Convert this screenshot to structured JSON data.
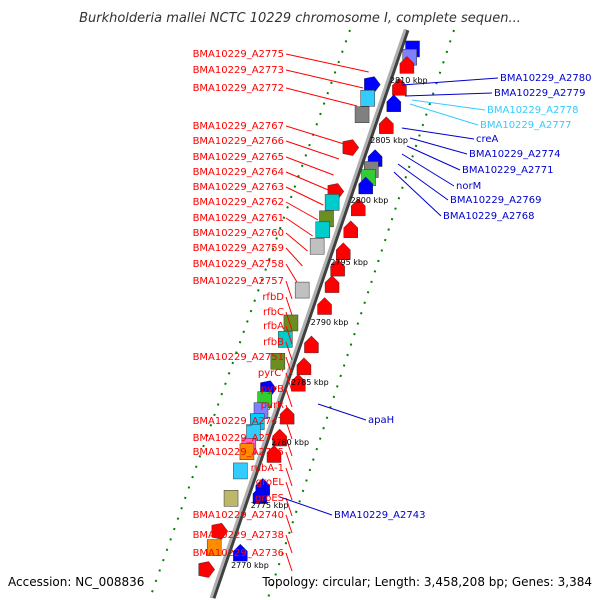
{
  "title": "Burkholderia mallei NCTC 10229 chromosome I, complete sequen...",
  "footer": {
    "accession": "Accession: NC_008836",
    "topology": "Topology: circular; Length: 3,458,208 bp; Genes: 3,384"
  },
  "colors": {
    "label_red": "#ff0000",
    "label_blue": "#0000cc",
    "label_cyan": "#33ccff",
    "backbone": "#808080",
    "dotted_ring": "#008000",
    "gene_red": "#ff0000",
    "gene_blue": "#0000ff",
    "gene_olive": "#6b8e23",
    "gene_cyan": "#00cccc",
    "gene_gray": "#c0c0c0",
    "gene_khaki": "#bdb76b",
    "gene_lavender": "#8080ff",
    "gene_orange": "#ff8c00",
    "gene_green": "#33cc33",
    "gene_pink": "#ff66cc"
  },
  "scale_ticks": [
    "2810 kbp",
    "2805 kbp",
    "2800 kbp",
    "2795 kbp",
    "2790 kbp",
    "2785 kbp",
    "2780 kbp",
    "2775 kbp",
    "2770 kbp"
  ],
  "left_labels": [
    "BMA10229_A2775",
    "BMA10229_A2773",
    "BMA10229_A2772",
    "BMA10229_A2767",
    "BMA10229_A2766",
    "BMA10229_A2765",
    "BMA10229_A2764",
    "BMA10229_A2763",
    "BMA10229_A2762",
    "BMA10229_A2761",
    "BMA10229_A2760",
    "BMA10229_A2759",
    "BMA10229_A2758",
    "BMA10229_A2757",
    "rfbD",
    "rfbC",
    "rfbA",
    "rfbB",
    "BMA10229_A2751",
    "pyrC'",
    "pyrB",
    "pyrR",
    "BMA10229_A2747",
    "BMA10229_A2746",
    "BMA10229_A2745",
    "rubA-1",
    "groEL",
    "groES",
    "BMA10229_A2740",
    "BMA10229_A2738",
    "BMA10229_A2736"
  ],
  "right_labels": [
    {
      "text": "BMA10229_A2780",
      "tone": "blue"
    },
    {
      "text": "BMA10229_A2779",
      "tone": "blue"
    },
    {
      "text": "BMA10229_A2778",
      "tone": "cyan"
    },
    {
      "text": "BMA10229_A2777",
      "tone": "cyan"
    },
    {
      "text": "creA",
      "tone": "blue"
    },
    {
      "text": "BMA10229_A2774",
      "tone": "blue"
    },
    {
      "text": "BMA10229_A2771",
      "tone": "blue"
    },
    {
      "text": "norM",
      "tone": "blue"
    },
    {
      "text": "BMA10229_A2769",
      "tone": "blue"
    },
    {
      "text": "BMA10229_A2768",
      "tone": "blue"
    },
    {
      "text": "apaH",
      "tone": "blue"
    },
    {
      "text": "BMA10229_A2743",
      "tone": "blue"
    }
  ],
  "genes": [
    {
      "pos": 0.02,
      "track": "right",
      "shape": "rect",
      "color": "#0000ff"
    },
    {
      "pos": 0.035,
      "track": "right",
      "shape": "rect",
      "color": "#8080ff"
    },
    {
      "pos": 0.05,
      "track": "right",
      "shape": "arrow",
      "color": "#ff0000"
    },
    {
      "pos": 0.09,
      "track": "right",
      "shape": "arrow",
      "color": "#ff0000"
    },
    {
      "pos": 0.085,
      "track": "left",
      "shape": "arrow",
      "color": "#0000ff"
    },
    {
      "pos": 0.11,
      "track": "left",
      "shape": "rect",
      "color": "#33ccff"
    },
    {
      "pos": 0.14,
      "track": "left",
      "shape": "rect",
      "color": "#808080"
    },
    {
      "pos": 0.12,
      "track": "right",
      "shape": "arrow",
      "color": "#0000ff"
    },
    {
      "pos": 0.16,
      "track": "right",
      "shape": "arrow",
      "color": "#ff0000"
    },
    {
      "pos": 0.2,
      "track": "left",
      "shape": "arrow",
      "color": "#ff0000"
    },
    {
      "pos": 0.22,
      "track": "right",
      "shape": "arrow",
      "color": "#0000ff"
    },
    {
      "pos": 0.24,
      "track": "right",
      "shape": "rect",
      "color": "#808080"
    },
    {
      "pos": 0.255,
      "track": "right",
      "shape": "rect",
      "color": "#33cc33"
    },
    {
      "pos": 0.27,
      "track": "right",
      "shape": "arrow",
      "color": "#0000ff"
    },
    {
      "pos": 0.28,
      "track": "left",
      "shape": "arrow",
      "color": "#ff0000"
    },
    {
      "pos": 0.3,
      "track": "left",
      "shape": "rect",
      "color": "#00cccc"
    },
    {
      "pos": 0.31,
      "track": "right",
      "shape": "arrow",
      "color": "#ff0000"
    },
    {
      "pos": 0.33,
      "track": "left",
      "shape": "rect",
      "color": "#6b8e23"
    },
    {
      "pos": 0.35,
      "track": "left",
      "shape": "rect",
      "color": "#00cccc"
    },
    {
      "pos": 0.35,
      "track": "right",
      "shape": "arrow",
      "color": "#ff0000"
    },
    {
      "pos": 0.38,
      "track": "left",
      "shape": "rect",
      "color": "#c0c0c0"
    },
    {
      "pos": 0.39,
      "track": "right",
      "shape": "arrow",
      "color": "#ff0000"
    },
    {
      "pos": 0.42,
      "track": "right",
      "shape": "arrow",
      "color": "#ff0000"
    },
    {
      "pos": 0.45,
      "track": "right",
      "shape": "arrow",
      "color": "#ff0000"
    },
    {
      "pos": 0.46,
      "track": "left",
      "shape": "rect",
      "color": "#c0c0c0"
    },
    {
      "pos": 0.49,
      "track": "right",
      "shape": "arrow",
      "color": "#ff0000"
    },
    {
      "pos": 0.52,
      "track": "left",
      "shape": "rect",
      "color": "#6b8e23"
    },
    {
      "pos": 0.55,
      "track": "left",
      "shape": "rect",
      "color": "#00cccc"
    },
    {
      "pos": 0.56,
      "track": "right",
      "shape": "arrow",
      "color": "#ff0000"
    },
    {
      "pos": 0.59,
      "track": "left",
      "shape": "rect",
      "color": "#6b8e23"
    },
    {
      "pos": 0.6,
      "track": "right",
      "shape": "arrow",
      "color": "#ff0000"
    },
    {
      "pos": 0.63,
      "track": "right",
      "shape": "arrow",
      "color": "#ff0000"
    },
    {
      "pos": 0.64,
      "track": "left",
      "shape": "arrow",
      "color": "#0000ff"
    },
    {
      "pos": 0.66,
      "track": "left",
      "shape": "rect",
      "color": "#33cc33"
    },
    {
      "pos": 0.68,
      "track": "left",
      "shape": "rect",
      "color": "#8080ff"
    },
    {
      "pos": 0.7,
      "track": "left",
      "shape": "rect",
      "color": "#00ccff"
    },
    {
      "pos": 0.69,
      "track": "right",
      "shape": "arrow",
      "color": "#ff0000"
    },
    {
      "pos": 0.72,
      "track": "left",
      "shape": "rect",
      "color": "#33ccff"
    },
    {
      "pos": 0.73,
      "track": "right",
      "shape": "arrow",
      "color": "#ff0000"
    },
    {
      "pos": 0.745,
      "track": "left",
      "shape": "rect",
      "color": "#ff66cc"
    },
    {
      "pos": 0.755,
      "track": "left",
      "shape": "rect",
      "color": "#ff8c00"
    },
    {
      "pos": 0.76,
      "track": "right",
      "shape": "arrow",
      "color": "#ff0000"
    },
    {
      "pos": 0.79,
      "track": "left",
      "shape": "rect",
      "color": "#33ccff"
    },
    {
      "pos": 0.82,
      "track": "right",
      "shape": "arrow",
      "color": "#0000ff"
    },
    {
      "pos": 0.835,
      "track": "right",
      "shape": "arrow",
      "color": "#0000ff"
    },
    {
      "pos": 0.84,
      "track": "left",
      "shape": "rect",
      "color": "#bdb76b"
    },
    {
      "pos": 0.9,
      "track": "left",
      "shape": "arrow",
      "color": "#ff0000"
    },
    {
      "pos": 0.93,
      "track": "left",
      "shape": "rect",
      "color": "#ff8c00"
    },
    {
      "pos": 0.94,
      "track": "right",
      "shape": "arrow",
      "color": "#0000ff"
    },
    {
      "pos": 0.97,
      "track": "left",
      "shape": "arrow",
      "color": "#ff0000"
    }
  ]
}
